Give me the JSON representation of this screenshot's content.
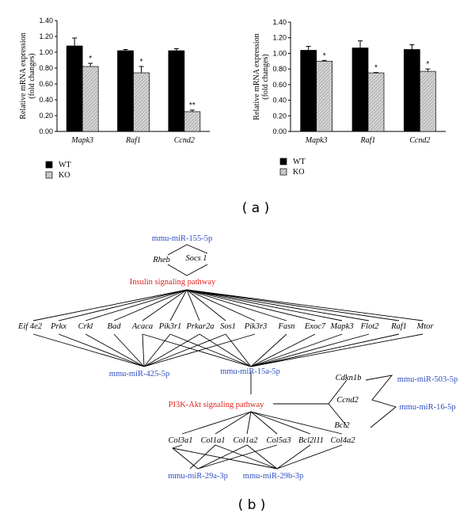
{
  "chart_data": [
    {
      "type": "bar",
      "categories": [
        "Mapk3",
        "Raf1",
        "Ccnd2"
      ],
      "series": [
        {
          "name": "WT",
          "values": [
            1.08,
            1.02,
            1.02
          ],
          "errors": [
            0.1,
            0.015,
            0.025
          ],
          "color": "#000000"
        },
        {
          "name": "KO",
          "values": [
            0.82,
            0.74,
            0.25
          ],
          "errors": [
            0.04,
            0.08,
            0.02
          ],
          "color": "#c8c8c8"
        }
      ],
      "significance": [
        "*",
        "*",
        "**"
      ],
      "ylabel": "Relative mRNA expression (fold changes)",
      "ylabel_lines": [
        "Relative mRNA expression",
        "(fold changes)"
      ],
      "yticks": [
        "0.00",
        "0.20",
        "0.40",
        "0.60",
        "0.80",
        "1.00",
        "1.20",
        "1.40"
      ],
      "ylim": [
        0,
        1.4
      ],
      "legend_position": "bottom-left"
    },
    {
      "type": "bar",
      "categories": [
        "Mapk3",
        "Raf1",
        "Ccnd2"
      ],
      "series": [
        {
          "name": "WT",
          "values": [
            1.04,
            1.07,
            1.05
          ],
          "errors": [
            0.05,
            0.09,
            0.06
          ],
          "color": "#000000"
        },
        {
          "name": "KO",
          "values": [
            0.9,
            0.75,
            0.77
          ],
          "errors": [
            0.01,
            0.005,
            0.03
          ],
          "color": "#c8c8c8"
        }
      ],
      "significance": [
        "*",
        "*",
        "*"
      ],
      "ylabel": "Relative mRNA expression (fold changes)",
      "ylabel_lines": [
        "Relative mRNA expression",
        "(fold changes)"
      ],
      "yticks": [
        "0.00",
        "0.20",
        "0.40",
        "0.60",
        "0.80",
        "1.00",
        "1.20",
        "1.40"
      ],
      "ylim": [
        0,
        1.4
      ],
      "legend_position": "bottom-left"
    }
  ],
  "labels": {
    "panel_a": "( a )",
    "panel_b": "( b )"
  },
  "network": {
    "mirnas": {
      "m155": "mmu-miR-155-5p",
      "m425": "mmu-miR-425-5p",
      "m15a": "mmu-miR-15a-5p",
      "m503": "mmu-miR-503-5p",
      "m16": "mmu-miR-16-5p",
      "m29a": "mmu-miR-29a-3p",
      "m29b": "mmu-miR-29b-3p"
    },
    "pathways": {
      "insulin": "Insulin signaling pathway",
      "pi3k": "PI3K-Akt signaling pathway"
    },
    "genes": {
      "rheb": "Rheb",
      "socs1": "Socs 1",
      "eif4e2": "Eif 4e2",
      "prkx": "Prkx",
      "crkl": "Crkl",
      "bad": "Bad",
      "acaca": "Acaca",
      "pik3r1": "Pik3r1",
      "prkar2a": "Prkar2a",
      "sos1": "Sos1",
      "pik3r3": "Pik3r3",
      "fasn": "Fasn",
      "exoc7": "Exoc7",
      "mapk3": "Mapk3",
      "flot2": "Flot2",
      "raf1": "Raf1",
      "mtor": "Mtor",
      "cdkn1b": "Cdkn1b",
      "ccnd2": "Ccnd2",
      "bcl2": "Bcl2",
      "col3a1": "Col3a1",
      "col1a1": "Col1a1",
      "col1a2": "Col1a2",
      "col5a3": "Col5a3",
      "bcl2l11": "Bcl2l11",
      "col4a2": "Col4a2"
    }
  }
}
